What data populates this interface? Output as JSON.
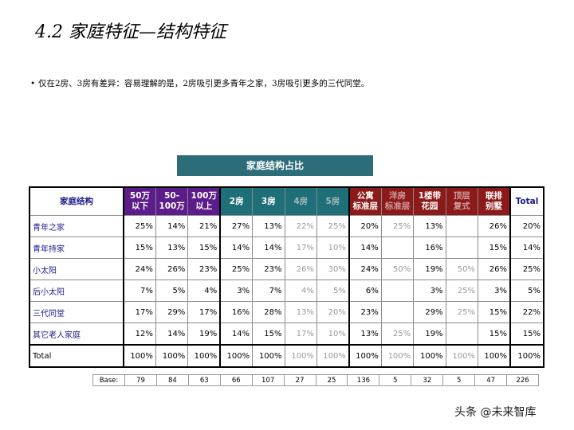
{
  "title": "4.2 家庭特征—结构特征",
  "bullet": "仅在2房、3房有差异：容易理解的是，2房吸引更多青年之家，3房吸引更多的三代同堂。",
  "banner": "家庭结构占比",
  "table": {
    "row_header": "家庭结构",
    "columns": [
      {
        "label": [
          "50万",
          "以下"
        ],
        "style": "purple"
      },
      {
        "label": [
          "50-",
          "100万"
        ],
        "style": "purple"
      },
      {
        "label": [
          "100万",
          "以上"
        ],
        "style": "purple"
      },
      {
        "label": [
          "2房"
        ],
        "style": "teal"
      },
      {
        "label": [
          "3房"
        ],
        "style": "teal"
      },
      {
        "label": [
          "4房"
        ],
        "style": "tealfade"
      },
      {
        "label": [
          "5房"
        ],
        "style": "tealfade"
      },
      {
        "label": [
          "公寓",
          "标准层"
        ],
        "style": "darkred"
      },
      {
        "label": [
          "洋房",
          "标准层"
        ],
        "style": "darkredfade"
      },
      {
        "label": [
          "1楼带",
          "花园"
        ],
        "style": "darkred"
      },
      {
        "label": [
          "顶层",
          "复式"
        ],
        "style": "darkredfade"
      },
      {
        "label": [
          "联排",
          "别墅"
        ],
        "style": "darkred"
      }
    ],
    "total_header": "Total",
    "rows": [
      {
        "label": "青年之家",
        "values": [
          "25%",
          "14%",
          "21%",
          "27%",
          "13%",
          "22%",
          "25%",
          "20%",
          "25%",
          "13%",
          "",
          "26%"
        ],
        "total": "20%"
      },
      {
        "label": "青年持家",
        "values": [
          "15%",
          "13%",
          "15%",
          "14%",
          "14%",
          "17%",
          "10%",
          "14%",
          "",
          "16%",
          "",
          "15%"
        ],
        "total": "14%"
      },
      {
        "label": "小太阳",
        "values": [
          "24%",
          "26%",
          "23%",
          "25%",
          "23%",
          "26%",
          "30%",
          "24%",
          "50%",
          "19%",
          "50%",
          "26%"
        ],
        "total": "25%"
      },
      {
        "label": "后小太阳",
        "values": [
          "7%",
          "5%",
          "4%",
          "3%",
          "7%",
          "4%",
          "5%",
          "6%",
          "",
          "3%",
          "25%",
          "3%"
        ],
        "total": "5%"
      },
      {
        "label": "三代同堂",
        "values": [
          "17%",
          "29%",
          "17%",
          "16%",
          "28%",
          "13%",
          "20%",
          "23%",
          "",
          "29%",
          "25%",
          "15%"
        ],
        "total": "22%"
      },
      {
        "label": "其它老人家庭",
        "values": [
          "12%",
          "14%",
          "19%",
          "14%",
          "15%",
          "17%",
          "10%",
          "13%",
          "25%",
          "19%",
          "",
          "15%"
        ],
        "total": "15%"
      }
    ],
    "total_row": {
      "label": "Total",
      "values": [
        "100%",
        "100%",
        "100%",
        "100%",
        "100%",
        "100%",
        "100%",
        "100%",
        "100%",
        "100%",
        "100%",
        "100%"
      ],
      "total": "100%"
    }
  },
  "base": {
    "label": "Base:",
    "values": [
      "79",
      "84",
      "63",
      "66",
      "107",
      "27",
      "25",
      "136",
      "5",
      "32",
      "5",
      "47",
      "226"
    ]
  },
  "watermark": "头条 @未来智库"
}
